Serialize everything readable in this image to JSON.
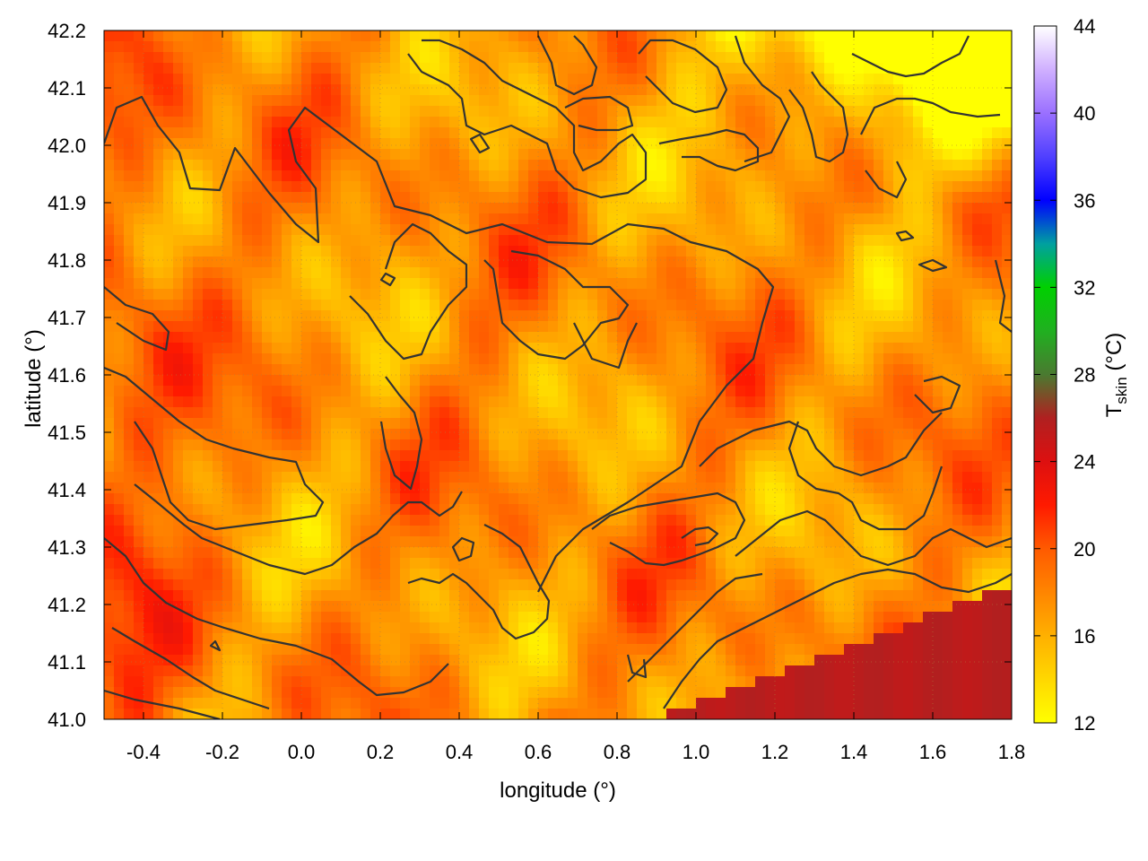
{
  "chart_data": {
    "type": "heatmap",
    "xlabel": "longitude (°)",
    "ylabel": "latitude (°)",
    "xlim": [
      -0.5,
      1.8
    ],
    "ylim": [
      41.0,
      42.2
    ],
    "x_ticks": [
      "-0.4",
      "-0.2",
      "0.0",
      "0.2",
      "0.4",
      "0.6",
      "0.8",
      "1.0",
      "1.2",
      "1.4",
      "1.6",
      "1.8"
    ],
    "y_ticks": [
      "41.0",
      "41.1",
      "41.2",
      "41.3",
      "41.4",
      "41.5",
      "41.6",
      "41.7",
      "41.8",
      "41.9",
      "42.0",
      "42.1",
      "42.2"
    ],
    "grid": true,
    "colorbar": {
      "label_main": "T",
      "label_sub": "skin",
      "label_unit": " (°C)",
      "range": [
        12,
        44
      ],
      "ticks": [
        "12",
        "16",
        "20",
        "24",
        "28",
        "32",
        "36",
        "40",
        "44"
      ],
      "stops": [
        {
          "value": 12,
          "color": "#ffff00"
        },
        {
          "value": 16,
          "color": "#ffb000"
        },
        {
          "value": 20,
          "color": "#ff5a00"
        },
        {
          "value": 22,
          "color": "#ff1a00"
        },
        {
          "value": 24,
          "color": "#dd1010"
        },
        {
          "value": 26,
          "color": "#b02020"
        },
        {
          "value": 28,
          "color": "#4a7a30"
        },
        {
          "value": 30,
          "color": "#20b020"
        },
        {
          "value": 32,
          "color": "#00d000"
        },
        {
          "value": 34,
          "color": "#00a0a0"
        },
        {
          "value": 36,
          "color": "#0000ff"
        },
        {
          "value": 38,
          "color": "#5040ff"
        },
        {
          "value": 40,
          "color": "#9a70ff"
        },
        {
          "value": 42,
          "color": "#d0b0ff"
        },
        {
          "value": 44,
          "color": "#ffffff"
        }
      ]
    },
    "contour_color": "#333333"
  }
}
